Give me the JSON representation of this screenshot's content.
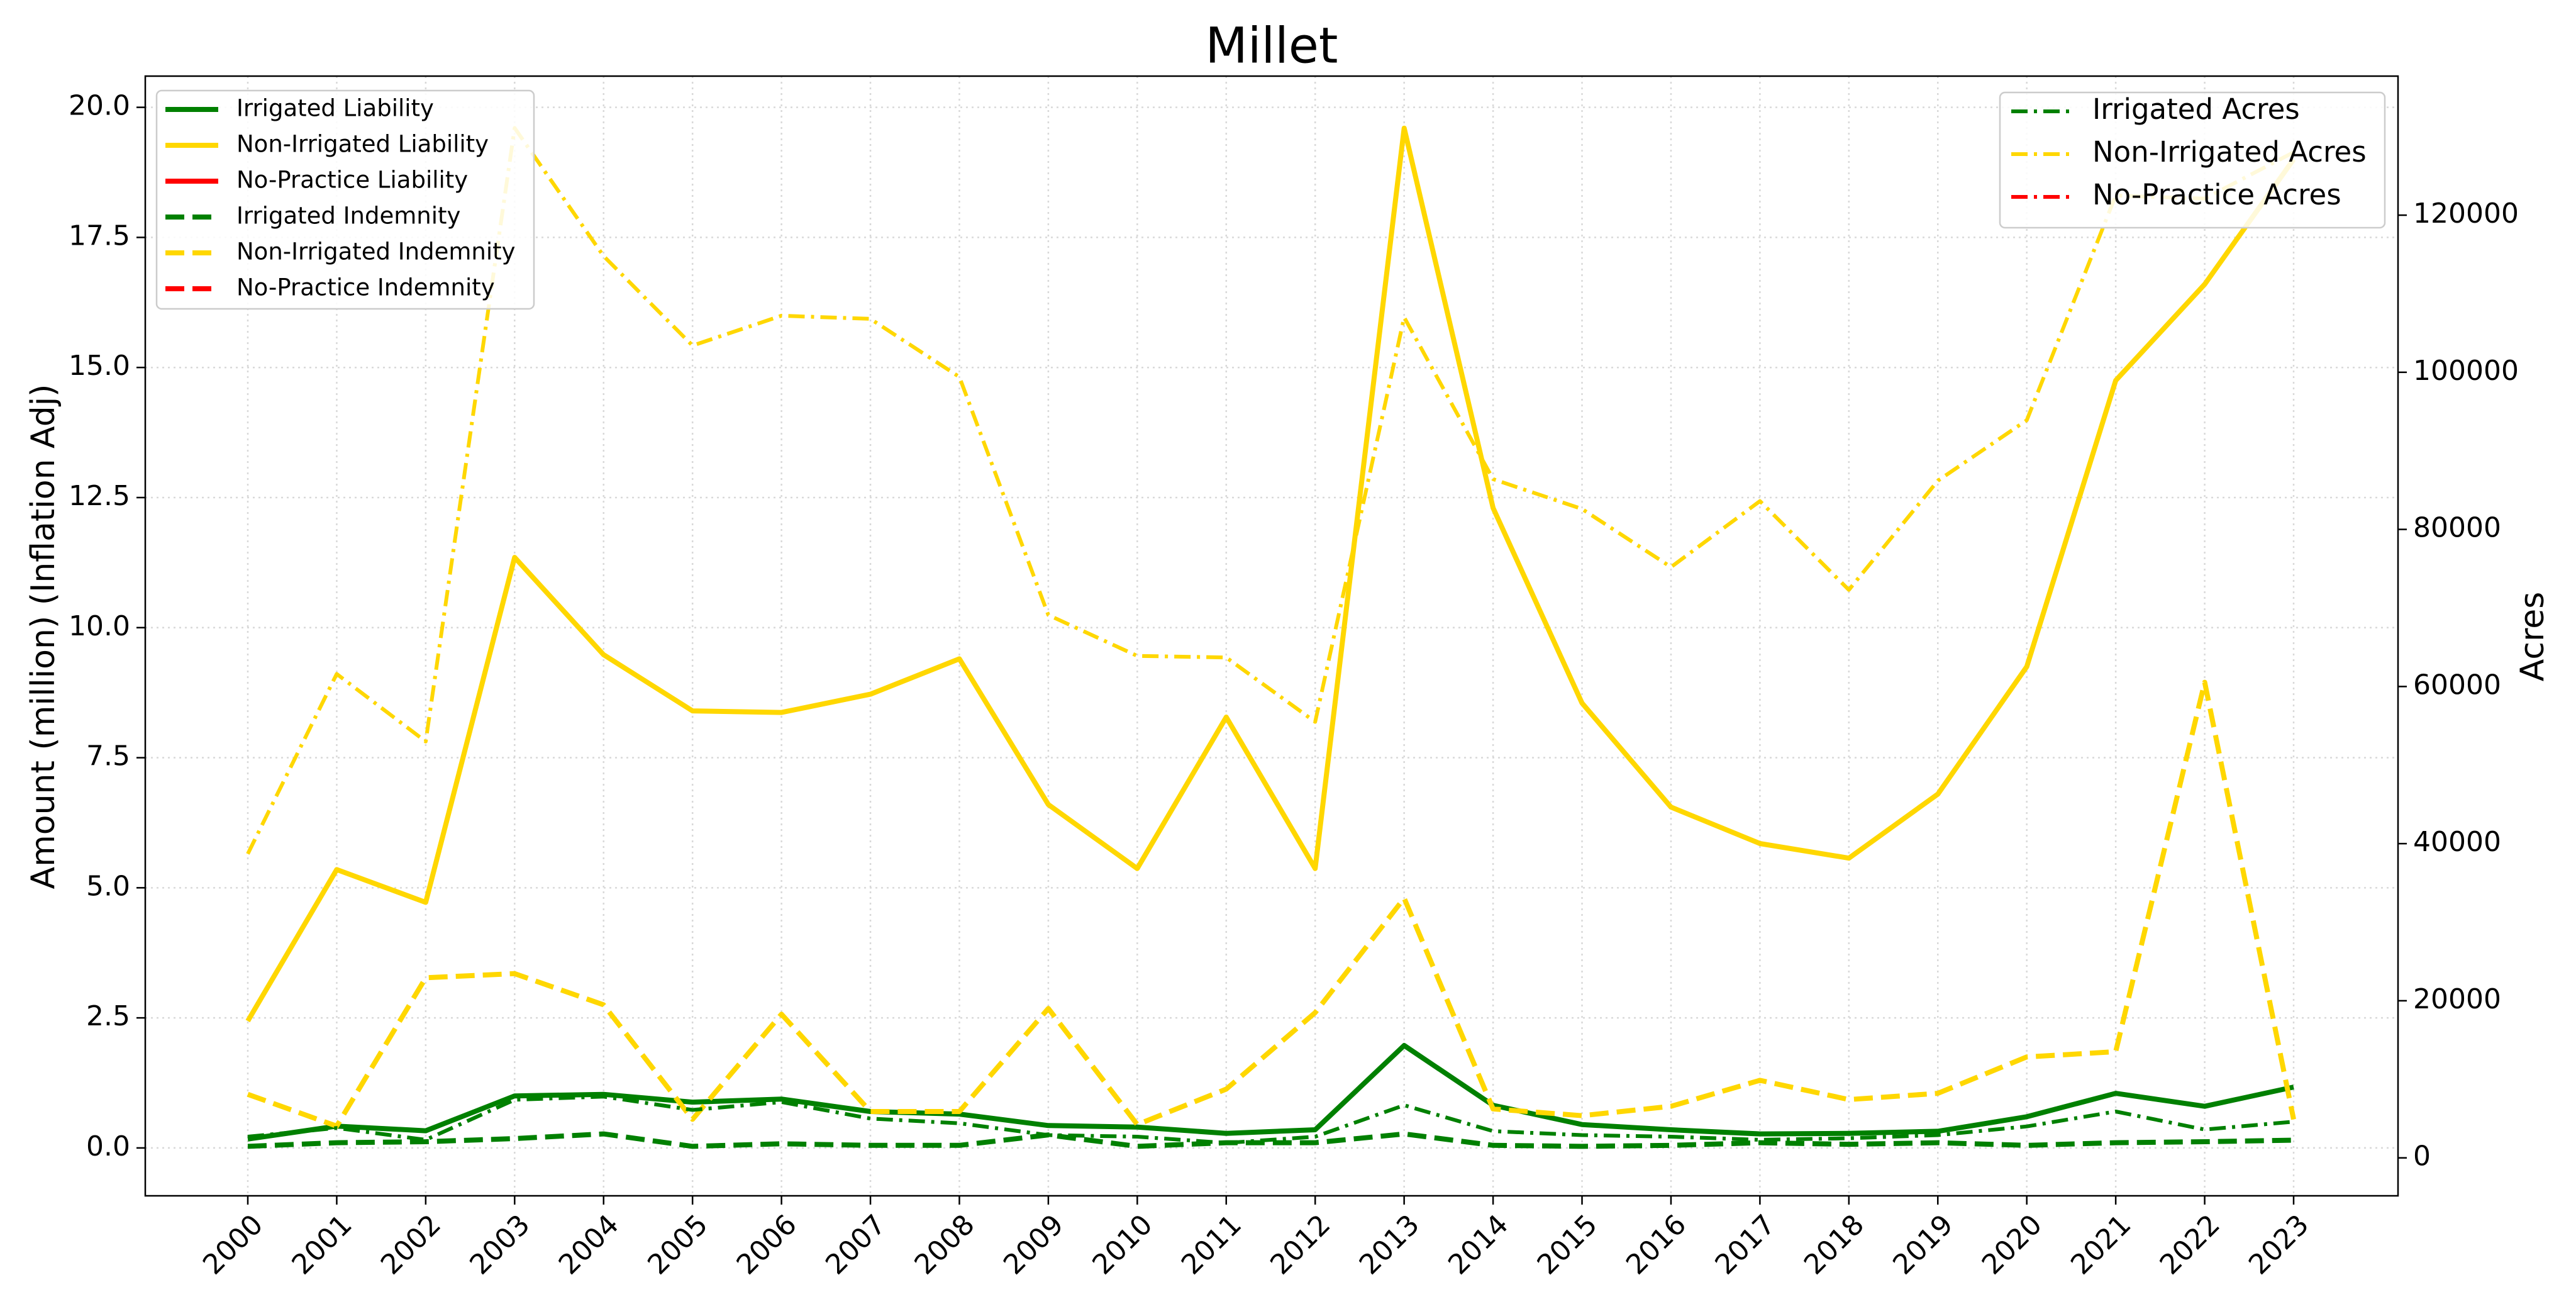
{
  "chart_data": {
    "type": "line",
    "title": "Millet",
    "ylabel": "Amount (million) (Inflation Adj)",
    "y2label": "Acres",
    "categories": [
      "2000",
      "2001",
      "2002",
      "2003",
      "2004",
      "2005",
      "2006",
      "2007",
      "2008",
      "2009",
      "2010",
      "2011",
      "2012",
      "2013",
      "2014",
      "2015",
      "2016",
      "2017",
      "2018",
      "2019",
      "2020",
      "2021",
      "2022",
      "2023"
    ],
    "series": [
      {
        "name": "Irrigated Liability",
        "color": "#008000",
        "style": "solid",
        "values": [
          0.17,
          0.42,
          0.33,
          1.0,
          1.03,
          0.88,
          0.94,
          0.7,
          0.65,
          0.43,
          0.4,
          0.28,
          0.35,
          1.97,
          0.82,
          0.45,
          0.35,
          0.27,
          0.28,
          0.32,
          0.6,
          1.05,
          0.8,
          1.17
        ]
      },
      {
        "name": "Non-Irrigated Liability",
        "color": "#ffd700",
        "style": "solid",
        "values": [
          2.44,
          5.35,
          4.72,
          11.35,
          9.48,
          8.4,
          8.37,
          8.72,
          9.4,
          6.6,
          5.37,
          8.28,
          5.37,
          19.6,
          12.3,
          8.55,
          6.55,
          5.85,
          5.57,
          6.8,
          9.25,
          14.75,
          16.6,
          19.0
        ]
      },
      {
        "name": "No-Practice Liability",
        "color": "#ff0000",
        "style": "solid",
        "values": [
          null,
          null,
          null,
          null,
          null,
          null,
          null,
          null,
          null,
          null,
          null,
          null,
          null,
          null,
          null,
          null,
          null,
          null,
          null,
          null,
          null,
          null,
          null,
          null
        ]
      },
      {
        "name": "Irrigated Indemnity",
        "color": "#008000",
        "style": "dashed",
        "values": [
          0.03,
          0.1,
          0.12,
          0.18,
          0.27,
          0.03,
          0.08,
          0.05,
          0.05,
          0.25,
          0.03,
          0.1,
          0.1,
          0.27,
          0.05,
          0.03,
          0.05,
          0.1,
          0.07,
          0.1,
          0.05,
          0.1,
          0.12,
          0.15
        ]
      },
      {
        "name": "Non-Irrigated Indemnity",
        "color": "#ffd700",
        "style": "dashed",
        "values": [
          1.03,
          0.42,
          3.27,
          3.35,
          2.75,
          0.55,
          2.57,
          0.7,
          0.7,
          2.68,
          0.45,
          1.13,
          2.6,
          4.8,
          0.75,
          0.62,
          0.8,
          1.3,
          0.93,
          1.05,
          1.75,
          1.85,
          8.95,
          0.55
        ]
      },
      {
        "name": "No-Practice Indemnity",
        "color": "#ff0000",
        "style": "dashed",
        "values": [
          null,
          null,
          null,
          null,
          null,
          null,
          null,
          null,
          null,
          null,
          null,
          null,
          null,
          null,
          null,
          null,
          null,
          null,
          null,
          null,
          null,
          null,
          null,
          null
        ]
      },
      {
        "name": "Irrigated Acres",
        "color": "#008000",
        "style": "dashdot",
        "axis": "y2",
        "values": [
          2700,
          3800,
          2300,
          7400,
          7800,
          6100,
          7100,
          5000,
          4400,
          2900,
          2700,
          1900,
          2700,
          6700,
          3400,
          2900,
          2700,
          2300,
          2500,
          2900,
          4000,
          5900,
          3600,
          4600
        ]
      },
      {
        "name": "Non-Irrigated Acres",
        "color": "#ffd700",
        "style": "dashdot",
        "axis": "y2",
        "values": [
          38700,
          61600,
          53000,
          131100,
          114800,
          103400,
          107200,
          106800,
          99400,
          69100,
          63900,
          63700,
          55500,
          107000,
          86400,
          82600,
          75200,
          83600,
          72300,
          86200,
          93900,
          122500,
          122100,
          128000
        ]
      },
      {
        "name": "No-Practice Acres",
        "color": "#ff0000",
        "style": "dashdot",
        "axis": "y2",
        "values": [
          null,
          null,
          null,
          null,
          null,
          null,
          null,
          null,
          null,
          null,
          null,
          null,
          null,
          null,
          null,
          null,
          null,
          null,
          null,
          null,
          null,
          null,
          null,
          null
        ]
      }
    ],
    "ylim": [
      -0.92,
      20.6
    ],
    "yticks": [
      {
        "value": 0,
        "label": "0.0"
      },
      2.5,
      {
        "value": 5,
        "label": "5.0"
      },
      7.5,
      {
        "value": 10,
        "label": "10.0"
      },
      12.5,
      {
        "value": 15,
        "label": "15.0"
      },
      17.5,
      {
        "value": 20,
        "label": "20.0"
      }
    ],
    "y2lim": [
      -4830,
      137700
    ],
    "y2ticks": [
      0,
      20000,
      40000,
      60000,
      80000,
      100000,
      120000
    ],
    "grid": true
  }
}
